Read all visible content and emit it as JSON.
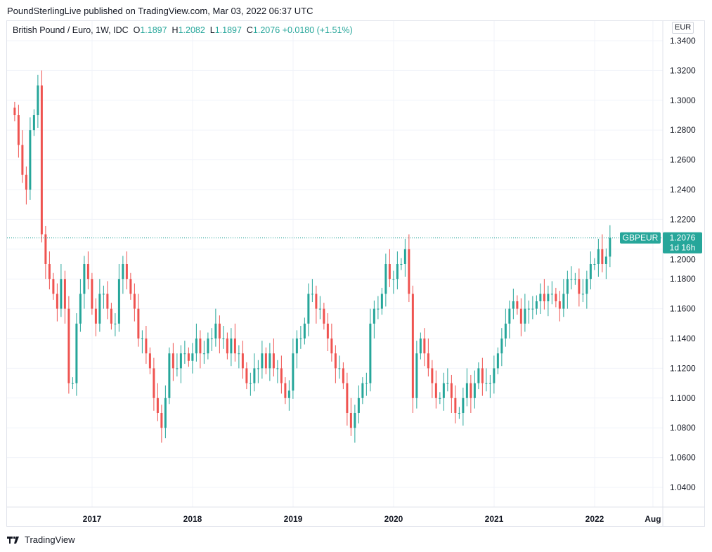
{
  "publisher_line": "PoundSterlingLive published on TradingView.com, Mar 03, 2022 06:37 UTC",
  "legend": {
    "name": "British Pound / Euro, 1W, IDC",
    "o_label": "O",
    "o": "1.1897",
    "h_label": "H",
    "h": "1.2082",
    "l_label": "L",
    "l": "1.1897",
    "c_label": "C",
    "c": "1.2076",
    "change": "+0.0180 (+1.51%)"
  },
  "currency": "EUR",
  "price_tag": {
    "symbol": "GBPEUR",
    "price": "1.2076",
    "countdown": "1d 16h"
  },
  "brand": "TradingView",
  "colors": {
    "up": "#26a69a",
    "down": "#ef5350"
  },
  "chart_data": {
    "type": "candlestick",
    "title": "British Pound / Euro, 1W, IDC",
    "ylim": [
      1.027,
      1.353
    ],
    "y_ticks": [
      "1.0400",
      "1.0600",
      "1.0800",
      "1.1000",
      "1.1200",
      "1.1400",
      "1.1600",
      "1.1800",
      "1.2000",
      "1.2200",
      "1.2400",
      "1.2600",
      "1.2800",
      "1.3000",
      "1.3200",
      "1.3400"
    ],
    "x_ticks": [
      {
        "label": "2017",
        "t": 2017
      },
      {
        "label": "2018",
        "t": 2018
      },
      {
        "label": "2019",
        "t": 2019
      },
      {
        "label": "2020",
        "t": 2020
      },
      {
        "label": "2021",
        "t": 2021
      },
      {
        "label": "2022",
        "t": 2022
      },
      {
        "label": "Aug",
        "t": 2022.58
      }
    ],
    "start_t": 2016.23,
    "step_years": 0.03846,
    "last_price": 1.2076,
    "closes": [
      1.29,
      1.27,
      1.25,
      1.24,
      1.28,
      1.29,
      1.31,
      1.21,
      1.19,
      1.18,
      1.17,
      1.16,
      1.18,
      1.16,
      1.11,
      1.11,
      1.15,
      1.17,
      1.19,
      1.18,
      1.16,
      1.15,
      1.17,
      1.17,
      1.16,
      1.15,
      1.15,
      1.18,
      1.19,
      1.18,
      1.17,
      1.16,
      1.14,
      1.14,
      1.13,
      1.12,
      1.1,
      1.09,
      1.08,
      1.1,
      1.13,
      1.12,
      1.12,
      1.13,
      1.13,
      1.125,
      1.13,
      1.14,
      1.13,
      1.13,
      1.14,
      1.14,
      1.15,
      1.14,
      1.14,
      1.13,
      1.14,
      1.13,
      1.13,
      1.12,
      1.11,
      1.11,
      1.12,
      1.12,
      1.13,
      1.12,
      1.13,
      1.12,
      1.12,
      1.11,
      1.1,
      1.105,
      1.13,
      1.14,
      1.14,
      1.15,
      1.17,
      1.17,
      1.16,
      1.16,
      1.15,
      1.14,
      1.13,
      1.12,
      1.12,
      1.11,
      1.09,
      1.08,
      1.09,
      1.1,
      1.11,
      1.11,
      1.15,
      1.16,
      1.16,
      1.17,
      1.19,
      1.18,
      1.18,
      1.19,
      1.19,
      1.2,
      1.17,
      1.1,
      1.13,
      1.14,
      1.13,
      1.12,
      1.11,
      1.1,
      1.1,
      1.11,
      1.11,
      1.1,
      1.09,
      1.09,
      1.1,
      1.11,
      1.1,
      1.11,
      1.12,
      1.11,
      1.11,
      1.11,
      1.12,
      1.13,
      1.14,
      1.15,
      1.16,
      1.165,
      1.16,
      1.15,
      1.16,
      1.16,
      1.16,
      1.165,
      1.17,
      1.165,
      1.17,
      1.17,
      1.165,
      1.16,
      1.17,
      1.18,
      1.18,
      1.18,
      1.17,
      1.17,
      1.18,
      1.19,
      1.19,
      1.2,
      1.19,
      1.195,
      1.2076
    ]
  }
}
